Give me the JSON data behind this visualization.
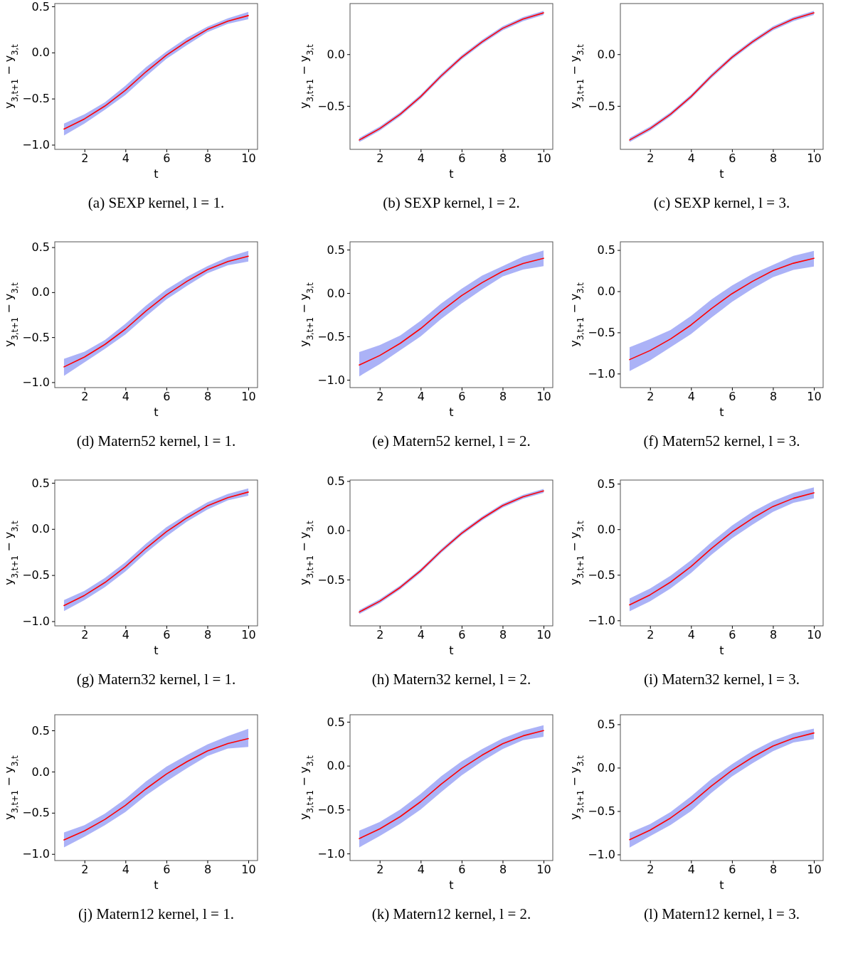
{
  "chart_data": [
    {
      "type": "line",
      "title": "(a) SEXP kernel, l = 1.",
      "xlabel": "t",
      "ylabel": "y$_{3,t+1}$ − y$_{3,t}$",
      "x": [
        1,
        2,
        3,
        4,
        5,
        6,
        7,
        8,
        9,
        10
      ],
      "xlim": [
        0.55,
        10.45
      ],
      "xticks": [
        2,
        4,
        6,
        8,
        10
      ],
      "ylim": [
        -1.05,
        0.53
      ],
      "yticks": [
        {
          "value": -1,
          "label": "−1.0"
        },
        {
          "value": -0.5,
          "label": "−0.5"
        },
        {
          "value": 0,
          "label": "0.0"
        },
        {
          "value": 0.5,
          "label": "0.5"
        }
      ],
      "series": [
        {
          "color": "#ff0000",
          "values": [
            -0.83,
            -0.72,
            -0.58,
            -0.41,
            -0.21,
            -0.03,
            0.12,
            0.25,
            0.34,
            0.4
          ],
          "lower": [
            -0.9,
            -0.77,
            -0.62,
            -0.46,
            -0.26,
            -0.07,
            0.08,
            0.22,
            0.31,
            0.36
          ],
          "upper": [
            -0.77,
            -0.67,
            -0.54,
            -0.36,
            -0.16,
            0.01,
            0.16,
            0.28,
            0.37,
            0.44
          ]
        }
      ]
    },
    {
      "type": "line",
      "title": "(b) SEXP kernel, l = 2.",
      "xlabel": "t",
      "ylabel": "y$_{3,t+1}$ − y$_{3,t}$",
      "x": [
        1,
        2,
        3,
        4,
        5,
        6,
        7,
        8,
        9,
        10
      ],
      "xlim": [
        0.55,
        10.45
      ],
      "xticks": [
        2,
        4,
        6,
        8,
        10
      ],
      "ylim": [
        -0.92,
        0.49
      ],
      "yticks": [
        {
          "value": -0.5,
          "label": "−0.5"
        },
        {
          "value": 0,
          "label": "0.0"
        }
      ],
      "series": [
        {
          "color": "#ff0000",
          "values": [
            -0.83,
            -0.72,
            -0.58,
            -0.41,
            -0.21,
            -0.03,
            0.12,
            0.25,
            0.34,
            0.4
          ],
          "lower": [
            -0.85,
            -0.74,
            -0.6,
            -0.43,
            -0.23,
            -0.05,
            0.1,
            0.23,
            0.32,
            0.38
          ],
          "upper": [
            -0.81,
            -0.7,
            -0.56,
            -0.39,
            -0.19,
            -0.01,
            0.14,
            0.27,
            0.36,
            0.42
          ]
        }
      ]
    },
    {
      "type": "line",
      "title": "(c) SEXP kernel, l = 3.",
      "xlabel": "t",
      "ylabel": "y$_{3,t+1}$ − y$_{3,t}$",
      "x": [
        1,
        2,
        3,
        4,
        5,
        6,
        7,
        8,
        9,
        10
      ],
      "xlim": [
        0.55,
        10.45
      ],
      "xticks": [
        2,
        4,
        6,
        8,
        10
      ],
      "ylim": [
        -0.92,
        0.49
      ],
      "yticks": [
        {
          "value": -0.5,
          "label": "−0.5"
        },
        {
          "value": 0,
          "label": "0.0"
        }
      ],
      "series": [
        {
          "color": "#ff0000",
          "values": [
            -0.83,
            -0.72,
            -0.58,
            -0.41,
            -0.21,
            -0.03,
            0.12,
            0.25,
            0.34,
            0.4
          ],
          "lower": [
            -0.85,
            -0.74,
            -0.6,
            -0.43,
            -0.23,
            -0.05,
            0.1,
            0.23,
            0.32,
            0.38
          ],
          "upper": [
            -0.81,
            -0.7,
            -0.56,
            -0.39,
            -0.19,
            -0.01,
            0.14,
            0.27,
            0.36,
            0.42
          ]
        }
      ]
    },
    {
      "type": "line",
      "title": "(d) Matern52 kernel, l = 1.",
      "xlabel": "t",
      "ylabel": "y$_{3,t+1}$ − y$_{3,t}$",
      "x": [
        1,
        2,
        3,
        4,
        5,
        6,
        7,
        8,
        9,
        10
      ],
      "xlim": [
        0.55,
        10.45
      ],
      "xticks": [
        2,
        4,
        6,
        8,
        10
      ],
      "ylim": [
        -1.06,
        0.56
      ],
      "yticks": [
        {
          "value": -1,
          "label": "−1.0"
        },
        {
          "value": -0.5,
          "label": "−0.5"
        },
        {
          "value": 0,
          "label": "0.0"
        },
        {
          "value": 0.5,
          "label": "0.5"
        }
      ],
      "series": [
        {
          "color": "#ff0000",
          "values": [
            -0.83,
            -0.72,
            -0.58,
            -0.41,
            -0.21,
            -0.03,
            0.12,
            0.25,
            0.34,
            0.4
          ],
          "lower": [
            -0.93,
            -0.78,
            -0.63,
            -0.47,
            -0.27,
            -0.08,
            0.07,
            0.21,
            0.3,
            0.34
          ],
          "upper": [
            -0.74,
            -0.66,
            -0.53,
            -0.35,
            -0.15,
            0.03,
            0.17,
            0.29,
            0.39,
            0.46
          ]
        }
      ]
    },
    {
      "type": "line",
      "title": "(e) Matern52 kernel, l = 2.",
      "xlabel": "t",
      "ylabel": "y$_{3,t+1}$ − y$_{3,t}$",
      "x": [
        1,
        2,
        3,
        4,
        5,
        6,
        7,
        8,
        9,
        10
      ],
      "xlim": [
        0.55,
        10.45
      ],
      "xticks": [
        2,
        4,
        6,
        8,
        10
      ],
      "ylim": [
        -1.09,
        0.59
      ],
      "yticks": [
        {
          "value": -1,
          "label": "−1.0"
        },
        {
          "value": -0.5,
          "label": "−0.5"
        },
        {
          "value": 0,
          "label": "0.0"
        },
        {
          "value": 0.5,
          "label": "0.5"
        }
      ],
      "series": [
        {
          "color": "#ff0000",
          "values": [
            -0.83,
            -0.72,
            -0.58,
            -0.41,
            -0.21,
            -0.03,
            0.12,
            0.25,
            0.34,
            0.4
          ],
          "lower": [
            -0.96,
            -0.82,
            -0.66,
            -0.5,
            -0.3,
            -0.12,
            0.04,
            0.19,
            0.27,
            0.31
          ],
          "upper": [
            -0.68,
            -0.6,
            -0.49,
            -0.32,
            -0.12,
            0.05,
            0.2,
            0.31,
            0.42,
            0.49
          ]
        }
      ]
    },
    {
      "type": "line",
      "title": "(f) Matern52 kernel, l = 3.",
      "xlabel": "t",
      "ylabel": "y$_{3,t+1}$ − y$_{3,t}$",
      "x": [
        1,
        2,
        3,
        4,
        5,
        6,
        7,
        8,
        9,
        10
      ],
      "xlim": [
        0.55,
        10.45
      ],
      "xticks": [
        2,
        4,
        6,
        8,
        10
      ],
      "ylim": [
        -1.17,
        0.6
      ],
      "yticks": [
        {
          "value": -1,
          "label": "−1.0"
        },
        {
          "value": -0.5,
          "label": "−0.5"
        },
        {
          "value": 0,
          "label": "0.0"
        },
        {
          "value": 0.5,
          "label": "0.5"
        }
      ],
      "series": [
        {
          "color": "#ff0000",
          "values": [
            -0.83,
            -0.72,
            -0.58,
            -0.41,
            -0.21,
            -0.03,
            0.12,
            0.25,
            0.34,
            0.4
          ],
          "lower": [
            -0.97,
            -0.84,
            -0.68,
            -0.52,
            -0.32,
            -0.13,
            0.03,
            0.17,
            0.26,
            0.3
          ],
          "upper": [
            -0.68,
            -0.58,
            -0.47,
            -0.3,
            -0.1,
            0.07,
            0.21,
            0.32,
            0.43,
            0.49
          ]
        }
      ]
    },
    {
      "type": "line",
      "title": "(g) Matern32 kernel, l = 1.",
      "xlabel": "t",
      "ylabel": "y$_{3,t+1}$ − y$_{3,t}$",
      "x": [
        1,
        2,
        3,
        4,
        5,
        6,
        7,
        8,
        9,
        10
      ],
      "xlim": [
        0.55,
        10.45
      ],
      "xticks": [
        2,
        4,
        6,
        8,
        10
      ],
      "ylim": [
        -1.05,
        0.53
      ],
      "yticks": [
        {
          "value": -1,
          "label": "−1.0"
        },
        {
          "value": -0.5,
          "label": "−0.5"
        },
        {
          "value": 0,
          "label": "0.0"
        },
        {
          "value": 0.5,
          "label": "0.5"
        }
      ],
      "series": [
        {
          "color": "#ff0000",
          "values": [
            -0.83,
            -0.72,
            -0.58,
            -0.41,
            -0.21,
            -0.03,
            0.12,
            0.25,
            0.34,
            0.4
          ],
          "lower": [
            -0.89,
            -0.77,
            -0.63,
            -0.46,
            -0.26,
            -0.08,
            0.08,
            0.21,
            0.31,
            0.36
          ],
          "upper": [
            -0.77,
            -0.67,
            -0.53,
            -0.36,
            -0.16,
            0.02,
            0.16,
            0.29,
            0.38,
            0.44
          ]
        }
      ]
    },
    {
      "type": "line",
      "title": "(h) Matern32 kernel, l = 2.",
      "xlabel": "t",
      "ylabel": "y$_{3,t+1}$ − y$_{3,t}$",
      "x": [
        1,
        2,
        3,
        4,
        5,
        6,
        7,
        8,
        9,
        10
      ],
      "xlim": [
        0.55,
        10.45
      ],
      "xticks": [
        2,
        4,
        6,
        8,
        10
      ],
      "ylim": [
        -0.97,
        0.51
      ],
      "yticks": [
        {
          "value": -0.5,
          "label": "−0.5"
        },
        {
          "value": 0,
          "label": "0.0"
        },
        {
          "value": 0.5,
          "label": "0.5"
        }
      ],
      "series": [
        {
          "color": "#ff0000",
          "values": [
            -0.83,
            -0.72,
            -0.58,
            -0.41,
            -0.21,
            -0.03,
            0.12,
            0.25,
            0.34,
            0.4
          ],
          "lower": [
            -0.85,
            -0.74,
            -0.6,
            -0.43,
            -0.23,
            -0.05,
            0.1,
            0.23,
            0.32,
            0.38
          ],
          "upper": [
            -0.81,
            -0.7,
            -0.56,
            -0.39,
            -0.19,
            -0.01,
            0.14,
            0.27,
            0.36,
            0.42
          ]
        }
      ]
    },
    {
      "type": "line",
      "title": "(i) Matern32 kernel, l = 3.",
      "xlabel": "t",
      "ylabel": "y$_{3,t+1}$ − y$_{3,t}$",
      "x": [
        1,
        2,
        3,
        4,
        5,
        6,
        7,
        8,
        9,
        10
      ],
      "xlim": [
        0.55,
        10.45
      ],
      "xticks": [
        2,
        4,
        6,
        8,
        10
      ],
      "ylim": [
        -1.06,
        0.54
      ],
      "yticks": [
        {
          "value": -1,
          "label": "−1.0"
        },
        {
          "value": -0.5,
          "label": "−0.5"
        },
        {
          "value": 0,
          "label": "0.0"
        },
        {
          "value": 0.5,
          "label": "0.5"
        }
      ],
      "series": [
        {
          "color": "#ff0000",
          "values": [
            -0.83,
            -0.72,
            -0.58,
            -0.41,
            -0.21,
            -0.03,
            0.12,
            0.25,
            0.34,
            0.4
          ],
          "lower": [
            -0.9,
            -0.79,
            -0.65,
            -0.48,
            -0.28,
            -0.1,
            0.05,
            0.19,
            0.29,
            0.34
          ],
          "upper": [
            -0.76,
            -0.65,
            -0.51,
            -0.34,
            -0.14,
            0.04,
            0.19,
            0.31,
            0.4,
            0.46
          ]
        }
      ]
    },
    {
      "type": "line",
      "title": "(j) Matern12 kernel, l = 1.",
      "xlabel": "t",
      "ylabel": "y$_{3,t+1}$ − y$_{3,t}$",
      "x": [
        1,
        2,
        3,
        4,
        5,
        6,
        7,
        8,
        9,
        10
      ],
      "xlim": [
        0.55,
        10.45
      ],
      "xticks": [
        2,
        4,
        6,
        8,
        10
      ],
      "ylim": [
        -1.08,
        0.69
      ],
      "yticks": [
        {
          "value": -1,
          "label": "−1.0"
        },
        {
          "value": -0.5,
          "label": "−0.5"
        },
        {
          "value": 0,
          "label": "0.0"
        },
        {
          "value": 0.5,
          "label": "0.5"
        }
      ],
      "series": [
        {
          "color": "#ff0000",
          "values": [
            -0.83,
            -0.72,
            -0.58,
            -0.41,
            -0.21,
            -0.03,
            0.12,
            0.25,
            0.34,
            0.4
          ],
          "lower": [
            -0.92,
            -0.79,
            -0.65,
            -0.49,
            -0.29,
            -0.12,
            0.04,
            0.19,
            0.28,
            0.3
          ],
          "upper": [
            -0.74,
            -0.65,
            -0.51,
            -0.33,
            -0.12,
            0.06,
            0.2,
            0.33,
            0.43,
            0.52
          ]
        }
      ]
    },
    {
      "type": "line",
      "title": "(k) Matern12 kernel, l = 2.",
      "xlabel": "t",
      "ylabel": "y$_{3,t+1}$ − y$_{3,t}$",
      "x": [
        1,
        2,
        3,
        4,
        5,
        6,
        7,
        8,
        9,
        10
      ],
      "xlim": [
        0.55,
        10.45
      ],
      "xticks": [
        2,
        4,
        6,
        8,
        10
      ],
      "ylim": [
        -1.08,
        0.58
      ],
      "yticks": [
        {
          "value": -1,
          "label": "−1.0"
        },
        {
          "value": -0.5,
          "label": "−0.5"
        },
        {
          "value": 0,
          "label": "0.0"
        },
        {
          "value": 0.5,
          "label": "0.5"
        }
      ],
      "series": [
        {
          "color": "#ff0000",
          "values": [
            -0.83,
            -0.72,
            -0.58,
            -0.41,
            -0.21,
            -0.03,
            0.12,
            0.25,
            0.34,
            0.4
          ],
          "lower": [
            -0.93,
            -0.8,
            -0.66,
            -0.5,
            -0.3,
            -0.11,
            0.05,
            0.19,
            0.29,
            0.33
          ],
          "upper": [
            -0.74,
            -0.64,
            -0.5,
            -0.32,
            -0.12,
            0.05,
            0.19,
            0.31,
            0.4,
            0.46
          ]
        }
      ]
    },
    {
      "type": "line",
      "title": "(l) Matern12 kernel, l = 3.",
      "xlabel": "t",
      "ylabel": "y$_{3,t+1}$ − y$_{3,t}$",
      "x": [
        1,
        2,
        3,
        4,
        5,
        6,
        7,
        8,
        9,
        10
      ],
      "xlim": [
        0.55,
        10.45
      ],
      "xticks": [
        2,
        4,
        6,
        8,
        10
      ],
      "ylim": [
        -1.07,
        0.61
      ],
      "yticks": [
        {
          "value": -1,
          "label": "−1.0"
        },
        {
          "value": -0.5,
          "label": "−0.5"
        },
        {
          "value": 0,
          "label": "0.0"
        },
        {
          "value": 0.5,
          "label": "0.5"
        }
      ],
      "series": [
        {
          "color": "#ff0000",
          "values": [
            -0.83,
            -0.72,
            -0.58,
            -0.41,
            -0.21,
            -0.03,
            0.12,
            0.25,
            0.34,
            0.4
          ],
          "lower": [
            -0.92,
            -0.79,
            -0.66,
            -0.5,
            -0.29,
            -0.1,
            0.05,
            0.19,
            0.29,
            0.33
          ],
          "upper": [
            -0.75,
            -0.65,
            -0.51,
            -0.33,
            -0.13,
            0.04,
            0.19,
            0.31,
            0.4,
            0.45
          ]
        }
      ]
    }
  ]
}
